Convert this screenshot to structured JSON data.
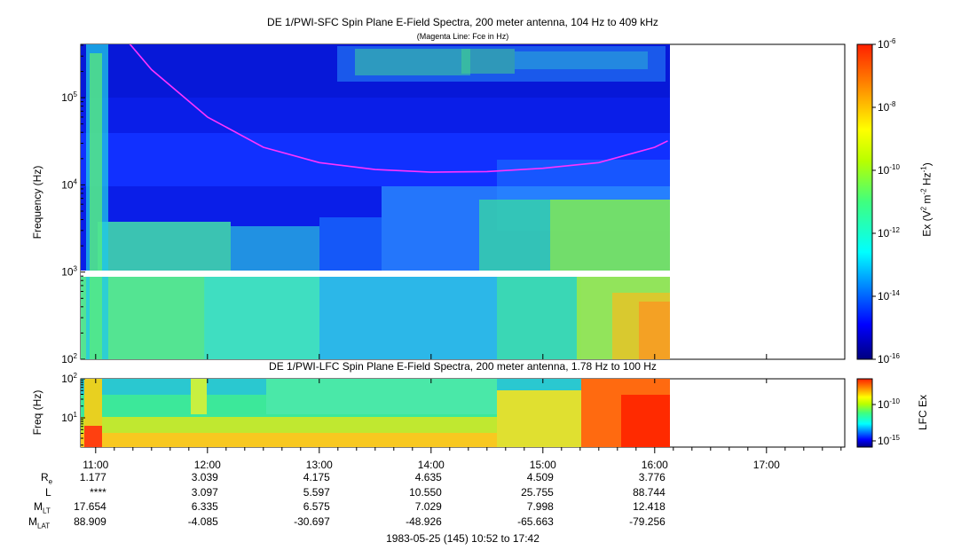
{
  "colors": {
    "background": "#ffffff",
    "magenta_line": "#ff33ff",
    "gap": "#ffffff"
  },
  "chart_data": [
    {
      "type": "heatmap",
      "title": "DE 1/PWI-SFC  Spin Plane E-Field Spectra, 200 meter antenna, 104 Hz to 409 kHz",
      "subtitle": "(Magenta Line: Fce in Hz)",
      "ylabel": "Frequency (Hz)",
      "y_scale": "log",
      "ylim": [
        100,
        409000
      ],
      "y_ticks": [
        "10^2",
        "10^3",
        "10^4",
        "10^5"
      ],
      "x_range": [
        "10:52",
        "17:42"
      ],
      "data_end": "16:07",
      "colorbar": {
        "label": "Ex (V^2 m^-2 Hz^-1)",
        "scale": "log",
        "range": [
          1e-16,
          1e-06
        ],
        "ticks": [
          "10^-6",
          "10^-8",
          "10^-10",
          "10^-12",
          "10^-14",
          "10^-16"
        ]
      },
      "series": [
        {
          "name": "Fce",
          "x": [
            "11:15",
            "11:30",
            "12:00",
            "12:30",
            "13:00",
            "13:30",
            "14:00",
            "14:30",
            "15:00",
            "15:30",
            "16:00",
            "16:07"
          ],
          "y": [
            500000,
            210000,
            60000,
            27000,
            18000,
            15000,
            14000,
            14200,
            15500,
            18000,
            27000,
            32000
          ]
        }
      ]
    },
    {
      "type": "heatmap",
      "title": "DE 1/PWI-LFC  Spin Plane E-Field Spectra, 200 meter antenna, 1.78 Hz to 100 Hz",
      "ylabel": "Freq (Hz)",
      "y_scale": "log",
      "ylim": [
        1.78,
        100
      ],
      "y_ticks": [
        "10^1",
        "10^2"
      ],
      "colorbar": {
        "label": "LFC Ex",
        "scale": "log",
        "ticks": [
          "10^-10",
          "10^-15"
        ]
      }
    }
  ],
  "time_axis": {
    "ticks": [
      "11:00",
      "12:00",
      "13:00",
      "14:00",
      "15:00",
      "16:00",
      "17:00"
    ],
    "footer": "1983-05-25 (145) 10:52 to 17:42"
  },
  "ephemeris": {
    "rows": [
      {
        "label": "R",
        "sub": "e",
        "values": [
          "1.177",
          "3.039",
          "4.175",
          "4.635",
          "4.509",
          "3.776"
        ]
      },
      {
        "label": "L",
        "sub": "",
        "values": [
          "****",
          "3.097",
          "5.597",
          "10.550",
          "25.755",
          "88.744"
        ]
      },
      {
        "label": "M",
        "sub": "LT",
        "values": [
          "17.654",
          "6.335",
          "6.575",
          "7.029",
          "7.998",
          "12.418"
        ]
      },
      {
        "label": "M",
        "sub": "LAT",
        "values": [
          "88.909",
          "-4.085",
          "-30.697",
          "-48.926",
          "-65.663",
          "-79.256"
        ]
      }
    ]
  }
}
